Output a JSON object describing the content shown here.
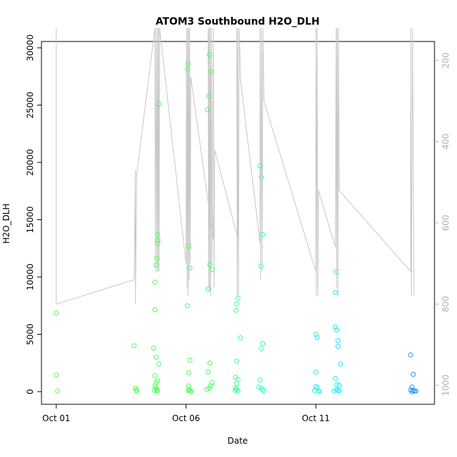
{
  "chart_data": {
    "type": "scatter",
    "title": "ATOM3 Southbound H2O_DLH",
    "xlabel": "Date",
    "ylabel": "H2O_DLH",
    "xlim": [
      0,
      14
    ],
    "ylim": [
      0,
      30000
    ],
    "x_ticks": [
      {
        "value": 0,
        "label": "Oct 01"
      },
      {
        "value": 5,
        "label": "Oct 06"
      },
      {
        "value": 10,
        "label": "Oct 11"
      }
    ],
    "y_ticks": [
      {
        "value": 0,
        "label": "0"
      },
      {
        "value": 5000,
        "label": "5000"
      },
      {
        "value": 10000,
        "label": "10000"
      },
      {
        "value": 15000,
        "label": "15000"
      },
      {
        "value": 20000,
        "label": "20000"
      },
      {
        "value": 25000,
        "label": "25000"
      },
      {
        "value": 30000,
        "label": "30000"
      }
    ],
    "y2_ticks": [
      {
        "value": 200,
        "label": "200"
      },
      {
        "value": 400,
        "label": "400"
      },
      {
        "value": 600,
        "label": "600"
      },
      {
        "value": 800,
        "label": "800"
      },
      {
        "value": 1000,
        "label": "1000"
      }
    ],
    "y2_range": [
      1050,
      120
    ],
    "pressure_color": "#c8c8c8",
    "points": [
      [
        0.0,
        6850
      ],
      [
        0.0,
        1450
      ],
      [
        0.05,
        50
      ],
      [
        3.0,
        4000
      ],
      [
        3.05,
        300
      ],
      [
        3.08,
        150
      ],
      [
        3.1,
        50
      ],
      [
        3.75,
        3800
      ],
      [
        3.8,
        9550
      ],
      [
        3.8,
        7150
      ],
      [
        3.85,
        11050
      ],
      [
        3.88,
        11650
      ],
      [
        3.9,
        12900
      ],
      [
        3.92,
        13200
      ],
      [
        3.9,
        13700
      ],
      [
        3.95,
        25100
      ],
      [
        3.85,
        3000
      ],
      [
        3.95,
        2400
      ],
      [
        3.8,
        1400
      ],
      [
        3.85,
        800
      ],
      [
        3.9,
        950
      ],
      [
        3.8,
        500
      ],
      [
        3.85,
        300
      ],
      [
        3.78,
        100
      ],
      [
        3.9,
        150
      ],
      [
        3.88,
        50
      ],
      [
        5.08,
        28600
      ],
      [
        5.05,
        28150
      ],
      [
        5.1,
        12700
      ],
      [
        5.15,
        10800
      ],
      [
        5.05,
        7500
      ],
      [
        5.15,
        2750
      ],
      [
        5.1,
        1650
      ],
      [
        5.1,
        500
      ],
      [
        5.12,
        200
      ],
      [
        5.08,
        100
      ],
      [
        5.15,
        50
      ],
      [
        5.2,
        0
      ],
      [
        5.9,
        29400
      ],
      [
        5.88,
        25800
      ],
      [
        5.82,
        24600
      ],
      [
        5.95,
        27900
      ],
      [
        5.92,
        11100
      ],
      [
        6.0,
        10650
      ],
      [
        5.85,
        8950
      ],
      [
        5.92,
        2500
      ],
      [
        5.85,
        1700
      ],
      [
        6.0,
        800
      ],
      [
        5.95,
        500
      ],
      [
        5.9,
        300
      ],
      [
        5.8,
        200
      ],
      [
        7.0,
        8150
      ],
      [
        6.95,
        7650
      ],
      [
        6.92,
        7100
      ],
      [
        7.1,
        4700
      ],
      [
        6.95,
        2650
      ],
      [
        6.9,
        1250
      ],
      [
        7.0,
        1050
      ],
      [
        6.95,
        700
      ],
      [
        6.9,
        300
      ],
      [
        6.95,
        200
      ],
      [
        7.0,
        50
      ],
      [
        6.9,
        100
      ],
      [
        7.85,
        19700
      ],
      [
        7.9,
        18700
      ],
      [
        7.95,
        13700
      ],
      [
        7.88,
        10950
      ],
      [
        7.95,
        4200
      ],
      [
        7.9,
        3750
      ],
      [
        7.85,
        1000
      ],
      [
        7.8,
        400
      ],
      [
        7.9,
        300
      ],
      [
        7.95,
        150
      ],
      [
        8.0,
        50
      ],
      [
        10.0,
        5000
      ],
      [
        10.05,
        4700
      ],
      [
        10.0,
        1700
      ],
      [
        10.0,
        450
      ],
      [
        10.05,
        350
      ],
      [
        9.95,
        100
      ],
      [
        10.1,
        50
      ],
      [
        10.15,
        0
      ],
      [
        10.78,
        10450
      ],
      [
        10.75,
        8650
      ],
      [
        10.75,
        5650
      ],
      [
        10.8,
        5400
      ],
      [
        10.85,
        4450
      ],
      [
        10.85,
        3950
      ],
      [
        10.95,
        2400
      ],
      [
        10.75,
        1150
      ],
      [
        10.8,
        600
      ],
      [
        10.9,
        550
      ],
      [
        10.8,
        150
      ],
      [
        10.85,
        100
      ],
      [
        10.7,
        50
      ],
      [
        10.9,
        50
      ],
      [
        13.65,
        3200
      ],
      [
        13.75,
        1500
      ],
      [
        13.7,
        400
      ],
      [
        13.65,
        150
      ],
      [
        13.75,
        100
      ],
      [
        13.8,
        50
      ],
      [
        13.85,
        50
      ],
      [
        13.7,
        0
      ]
    ],
    "pressure_trace": [
      [
        0.0,
        120
      ],
      [
        0.0,
        800
      ],
      [
        3.0,
        740
      ],
      [
        3.05,
        470
      ],
      [
        3.05,
        800
      ],
      [
        3.1,
        480
      ],
      [
        3.8,
        120
      ],
      [
        3.82,
        720
      ],
      [
        3.85,
        120
      ],
      [
        3.88,
        720
      ],
      [
        3.9,
        120
      ],
      [
        3.92,
        720
      ],
      [
        3.94,
        120
      ],
      [
        3.96,
        720
      ],
      [
        3.98,
        120
      ],
      [
        5.0,
        700
      ],
      [
        5.02,
        120
      ],
      [
        5.04,
        760
      ],
      [
        5.06,
        120
      ],
      [
        5.08,
        780
      ],
      [
        5.1,
        120
      ],
      [
        5.12,
        740
      ],
      [
        5.14,
        120
      ],
      [
        5.16,
        700
      ],
      [
        5.18,
        240
      ],
      [
        6.05,
        640
      ],
      [
        5.85,
        120
      ],
      [
        5.87,
        760
      ],
      [
        5.89,
        120
      ],
      [
        5.91,
        770
      ],
      [
        5.93,
        120
      ],
      [
        5.95,
        780
      ],
      [
        5.97,
        120
      ],
      [
        6.0,
        700
      ],
      [
        6.05,
        120
      ],
      [
        6.08,
        760
      ],
      [
        6.1,
        420
      ],
      [
        7.0,
        640
      ],
      [
        6.95,
        120
      ],
      [
        6.97,
        780
      ],
      [
        6.99,
        120
      ],
      [
        7.02,
        780
      ],
      [
        7.05,
        120
      ],
      [
        7.1,
        250
      ],
      [
        7.85,
        650
      ],
      [
        7.85,
        120
      ],
      [
        7.87,
        740
      ],
      [
        7.9,
        120
      ],
      [
        7.93,
        720
      ],
      [
        7.96,
        120
      ],
      [
        8.0,
        300
      ],
      [
        10.0,
        720
      ],
      [
        10.0,
        120
      ],
      [
        10.02,
        780
      ],
      [
        10.05,
        120
      ],
      [
        10.08,
        780
      ],
      [
        10.1,
        520
      ],
      [
        10.75,
        660
      ],
      [
        10.78,
        120
      ],
      [
        10.8,
        760
      ],
      [
        10.82,
        120
      ],
      [
        10.85,
        780
      ],
      [
        10.87,
        120
      ],
      [
        10.9,
        520
      ],
      [
        13.65,
        720
      ],
      [
        13.65,
        120
      ],
      [
        13.68,
        780
      ],
      [
        13.72,
        120
      ],
      [
        13.78,
        780
      ]
    ]
  }
}
